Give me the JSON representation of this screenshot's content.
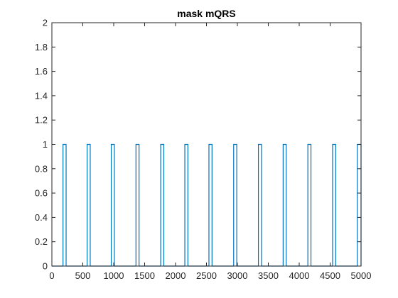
{
  "chart_data": {
    "type": "line",
    "title": "mask mQRS",
    "xlabel": "",
    "ylabel": "",
    "xlim": [
      0,
      5000
    ],
    "ylim": [
      0,
      2
    ],
    "grid": false,
    "box": true,
    "x_ticks": [
      0,
      500,
      1000,
      1500,
      2000,
      2500,
      3000,
      3500,
      4000,
      4500,
      5000
    ],
    "x_tick_labels": [
      "0",
      "500",
      "1000",
      "1500",
      "2000",
      "2500",
      "3000",
      "3500",
      "4000",
      "4500",
      "5000"
    ],
    "y_ticks": [
      0,
      0.2,
      0.4,
      0.6,
      0.8,
      1,
      1.2,
      1.4,
      1.6,
      1.8,
      2
    ],
    "y_tick_labels": [
      "0",
      "0.2",
      "0.4",
      "0.6",
      "0.8",
      "1",
      "1.2",
      "1.4",
      "1.6",
      "1.8",
      "2"
    ],
    "series": [
      {
        "color": "#0072bd",
        "baseline": 0,
        "pulse_level": 1,
        "pulses": [
          [
            180,
            230
          ],
          [
            570,
            620
          ],
          [
            960,
            1010
          ],
          [
            1360,
            1410
          ],
          [
            1760,
            1810
          ],
          [
            2150,
            2200
          ],
          [
            2540,
            2590
          ],
          [
            2940,
            2990
          ],
          [
            3340,
            3390
          ],
          [
            3740,
            3790
          ],
          [
            4140,
            4190
          ],
          [
            4540,
            4590
          ],
          [
            4940,
            5000
          ]
        ]
      }
    ]
  }
}
